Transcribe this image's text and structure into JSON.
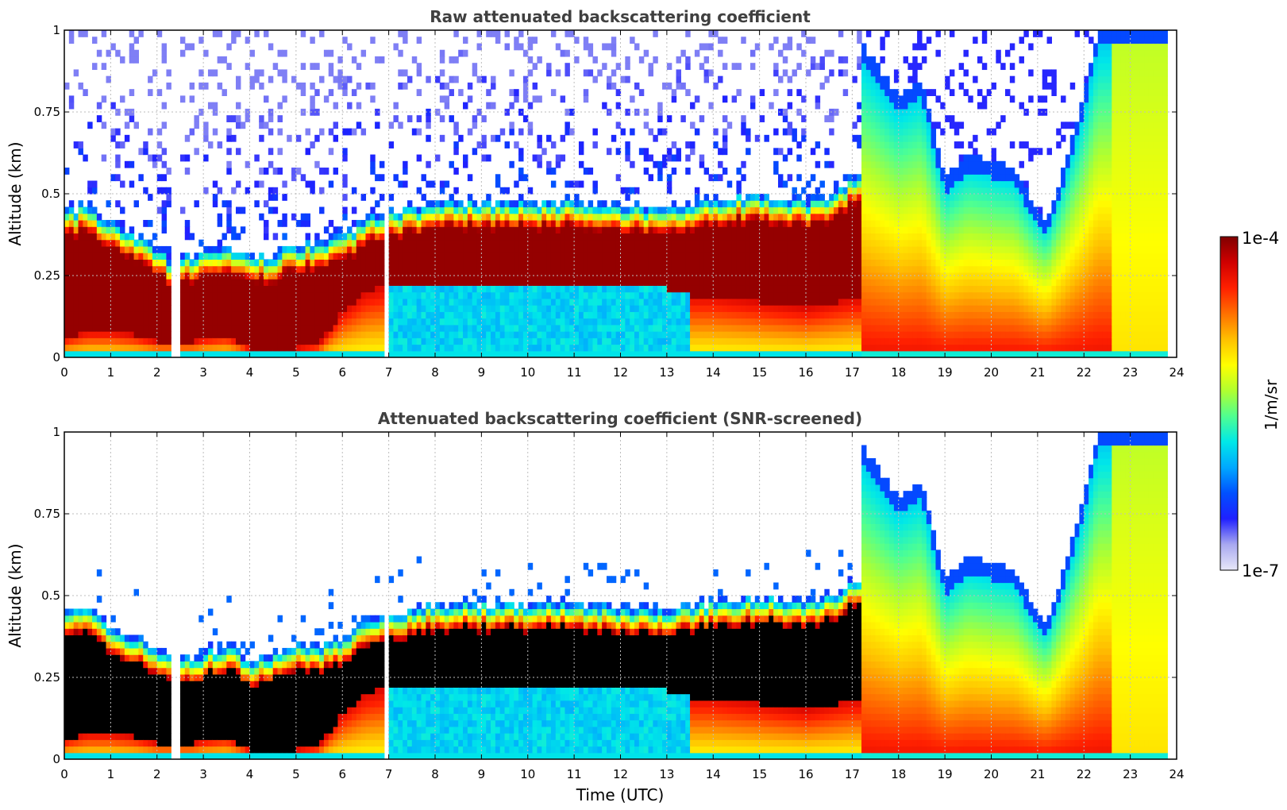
{
  "chart_data": [
    {
      "type": "heatmap",
      "title": "Raw attenuated backscattering coefficient",
      "xlabel": "",
      "ylabel": "Altitude (km)",
      "xlim": [
        0,
        24
      ],
      "ylim": [
        0,
        1
      ],
      "xticks": [
        "0",
        "1",
        "2",
        "3",
        "4",
        "5",
        "6",
        "7",
        "8",
        "9",
        "10",
        "11",
        "12",
        "13",
        "14",
        "15",
        "16",
        "17",
        "18",
        "19",
        "20",
        "21",
        "22",
        "23",
        "24"
      ],
      "yticks": [
        "0",
        "0.25",
        "0.5",
        "0.75",
        "1"
      ],
      "grid": true,
      "x_unit": "hour UTC",
      "y_unit": "km",
      "layer_top_km": [
        [
          0.0,
          0.4
        ],
        [
          0.5,
          0.42
        ],
        [
          1.0,
          0.36
        ],
        [
          1.5,
          0.33
        ],
        [
          2.0,
          0.28
        ],
        [
          2.4,
          0.25
        ],
        [
          2.8,
          0.27
        ],
        [
          3.0,
          0.28
        ],
        [
          3.5,
          0.3
        ],
        [
          4.0,
          0.26
        ],
        [
          4.5,
          0.27
        ],
        [
          5.0,
          0.3
        ],
        [
          5.5,
          0.3
        ],
        [
          6.0,
          0.32
        ],
        [
          6.5,
          0.38
        ],
        [
          7.0,
          0.4
        ],
        [
          7.5,
          0.41
        ],
        [
          8.0,
          0.43
        ],
        [
          9.0,
          0.43
        ],
        [
          10.0,
          0.43
        ],
        [
          11.0,
          0.43
        ],
        [
          12.0,
          0.42
        ],
        [
          13.0,
          0.41
        ],
        [
          13.5,
          0.42
        ],
        [
          14.0,
          0.44
        ],
        [
          15.0,
          0.45
        ],
        [
          16.0,
          0.43
        ],
        [
          16.5,
          0.45
        ],
        [
          17.0,
          0.5
        ]
      ],
      "layer_base_km": [
        [
          0.0,
          0.06
        ],
        [
          0.5,
          0.08
        ],
        [
          1.0,
          0.08
        ],
        [
          1.5,
          0.07
        ],
        [
          2.0,
          0.05
        ],
        [
          2.8,
          0.05
        ],
        [
          3.0,
          0.06
        ],
        [
          3.5,
          0.07
        ],
        [
          4.0,
          0.03
        ],
        [
          4.5,
          0.02
        ],
        [
          5.0,
          0.03
        ],
        [
          5.5,
          0.04
        ],
        [
          6.0,
          0.14
        ],
        [
          6.5,
          0.2
        ],
        [
          7.0,
          0.22
        ],
        [
          8.0,
          0.22
        ],
        [
          9.0,
          0.21
        ],
        [
          10.0,
          0.22
        ],
        [
          11.0,
          0.22
        ],
        [
          12.0,
          0.22
        ],
        [
          13.0,
          0.21
        ],
        [
          13.5,
          0.19
        ],
        [
          14.0,
          0.19
        ],
        [
          15.0,
          0.17
        ],
        [
          16.0,
          0.15
        ],
        [
          17.0,
          0.18
        ]
      ],
      "boundary_layer_top_km": [
        [
          17.0,
          1.0
        ],
        [
          17.5,
          0.9
        ],
        [
          18.0,
          0.8
        ],
        [
          18.5,
          0.85
        ],
        [
          19.0,
          0.55
        ],
        [
          19.5,
          0.62
        ],
        [
          20.0,
          0.6
        ],
        [
          20.5,
          0.58
        ],
        [
          21.0,
          0.45
        ],
        [
          21.2,
          0.42
        ],
        [
          21.5,
          0.55
        ],
        [
          22.0,
          0.8
        ],
        [
          22.3,
          1.0
        ],
        [
          24.0,
          1.0
        ]
      ],
      "data_gaps_hours": [
        [
          2.3,
          2.45
        ],
        [
          6.93,
          7.02
        ],
        [
          23.82,
          24.0
        ]
      ],
      "colorscale": "jet"
    },
    {
      "type": "heatmap",
      "title": "Attenuated backscattering coefficient (SNR-screened)",
      "xlabel": "Time (UTC)",
      "ylabel": "Altitude (km)",
      "xlim": [
        0,
        24
      ],
      "ylim": [
        0,
        1
      ],
      "xticks": [
        "0",
        "1",
        "2",
        "3",
        "4",
        "5",
        "6",
        "7",
        "8",
        "9",
        "10",
        "11",
        "12",
        "13",
        "14",
        "15",
        "16",
        "17",
        "18",
        "19",
        "20",
        "21",
        "22",
        "23",
        "24"
      ],
      "yticks": [
        "0",
        "0.25",
        "0.5",
        "0.75",
        "1"
      ],
      "grid": true,
      "x_unit": "hour UTC",
      "y_unit": "km",
      "screened_mask_color": "#000000",
      "data_gaps_hours": [
        [
          2.3,
          2.45
        ],
        [
          6.93,
          7.02
        ],
        [
          23.82,
          24.0
        ]
      ],
      "colorscale": "jet"
    }
  ],
  "colorbar": {
    "label": "1/m/sr",
    "max_label": "1e-4",
    "min_label": "1e-7",
    "scale": "log",
    "range": [
      1e-07,
      0.0001
    ],
    "colors": [
      "#e8e8f8",
      "#a8a8f0",
      "#2020ff",
      "#0050ff",
      "#00a8ff",
      "#00e8e8",
      "#50ff90",
      "#b0ff30",
      "#ffff00",
      "#ffc000",
      "#ff7000",
      "#ff2000",
      "#d00000",
      "#800000"
    ]
  }
}
